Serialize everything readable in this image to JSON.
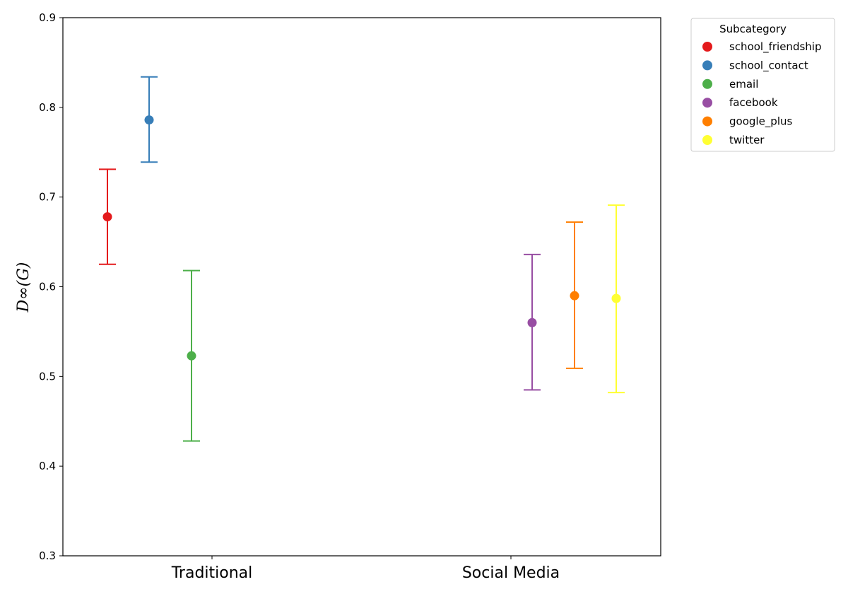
{
  "chart_data": {
    "type": "scatter",
    "title": "",
    "xlabel": "",
    "ylabel": "D∞(G)",
    "ylim": [
      0.3,
      0.9
    ],
    "y_ticks": [
      "0.3",
      "0.4",
      "0.5",
      "0.6",
      "0.7",
      "0.8",
      "0.9"
    ],
    "categories": [
      "Traditional",
      "Social Media"
    ],
    "grid": false,
    "legend": {
      "title": "Subcategory",
      "position": "outside-top-right"
    },
    "series": [
      {
        "name": "school_friendship",
        "category": "Traditional",
        "color": "#e41a1c",
        "value": 0.678,
        "lower": 0.625,
        "upper": 0.731
      },
      {
        "name": "school_contact",
        "category": "Traditional",
        "color": "#377eb8",
        "value": 0.786,
        "lower": 0.739,
        "upper": 0.834
      },
      {
        "name": "email",
        "category": "Traditional",
        "color": "#4daf4a",
        "value": 0.523,
        "lower": 0.428,
        "upper": 0.618
      },
      {
        "name": "facebook",
        "category": "Social Media",
        "color": "#984ea3",
        "value": 0.56,
        "lower": 0.485,
        "upper": 0.636
      },
      {
        "name": "google_plus",
        "category": "Social Media",
        "color": "#ff7f00",
        "value": 0.59,
        "lower": 0.509,
        "upper": 0.672
      },
      {
        "name": "twitter",
        "category": "Social Media",
        "color": "#ffff33",
        "value": 0.587,
        "lower": 0.482,
        "upper": 0.691
      }
    ]
  }
}
